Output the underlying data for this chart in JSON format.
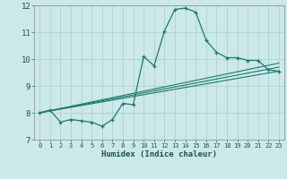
{
  "xlabel": "Humidex (Indice chaleur)",
  "ylabel": "",
  "background_color": "#cce8e8",
  "grid_color": "#aad4d4",
  "line_color": "#1a7a6e",
  "xlim": [
    -0.5,
    23.5
  ],
  "ylim": [
    7,
    12
  ],
  "xticks": [
    0,
    1,
    2,
    3,
    4,
    5,
    6,
    7,
    8,
    9,
    10,
    11,
    12,
    13,
    14,
    15,
    16,
    17,
    18,
    19,
    20,
    21,
    22,
    23
  ],
  "yticks": [
    7,
    8,
    9,
    10,
    11,
    12
  ],
  "main_x": [
    0,
    1,
    2,
    3,
    4,
    5,
    6,
    7,
    8,
    9,
    10,
    11,
    12,
    13,
    14,
    15,
    16,
    17,
    18,
    19,
    20,
    21,
    22,
    23
  ],
  "main_y": [
    8.0,
    8.1,
    7.65,
    7.75,
    7.7,
    7.65,
    7.5,
    7.75,
    8.35,
    8.3,
    10.1,
    9.75,
    11.05,
    11.85,
    11.9,
    11.75,
    10.7,
    10.25,
    10.05,
    10.05,
    9.95,
    9.95,
    9.6,
    9.55
  ],
  "line1_x": [
    0,
    23
  ],
  "line1_y": [
    8.0,
    9.55
  ],
  "line2_x": [
    0,
    23
  ],
  "line2_y": [
    8.0,
    9.7
  ],
  "line3_x": [
    0,
    23
  ],
  "line3_y": [
    8.0,
    9.85
  ]
}
